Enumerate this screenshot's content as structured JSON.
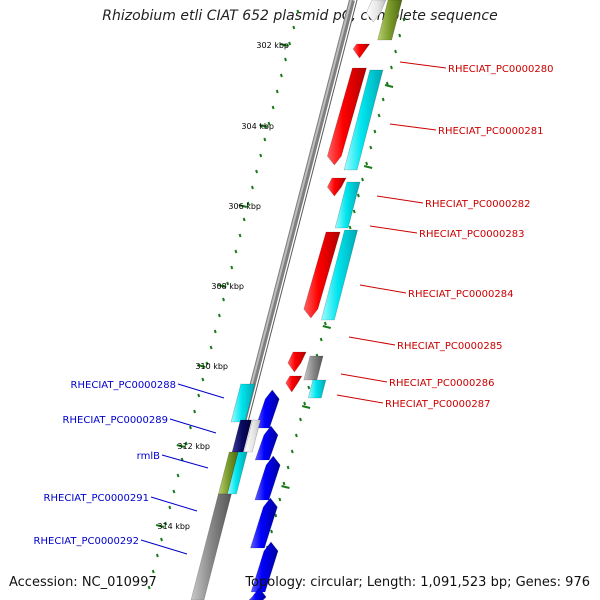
{
  "title": "Rhizobium etli CIAT 652 plasmid pC, complete sequence",
  "accession": "Accession: NC_010997",
  "summary": "Topology: circular; Length: 1,091,523 bp; Genes: 976",
  "colors": {
    "backbone": "#8c8c8c",
    "tick": "#1a7a1a",
    "plus_label": "#cc0000",
    "minus_label": "#0000cc"
  },
  "ticks": [
    "302 kbp",
    "304 kbp",
    "306 kbp",
    "308 kbp",
    "310 kbp",
    "312 kbp",
    "314 kbp"
  ],
  "genes_plus": [
    {
      "label": "RHECIAT_PC0000280"
    },
    {
      "label": "RHECIAT_PC0000281"
    },
    {
      "label": "RHECIAT_PC0000282"
    },
    {
      "label": "RHECIAT_PC0000283"
    },
    {
      "label": "RHECIAT_PC0000284"
    },
    {
      "label": "RHECIAT_PC0000285"
    },
    {
      "label": "RHECIAT_PC0000286"
    },
    {
      "label": "RHECIAT_PC0000287"
    }
  ],
  "genes_minus": [
    {
      "label": "RHECIAT_PC0000288"
    },
    {
      "label": "RHECIAT_PC0000289"
    },
    {
      "label": "rmlB"
    },
    {
      "label": "RHECIAT_PC0000291"
    },
    {
      "label": "RHECIAT_PC0000292"
    }
  ]
}
